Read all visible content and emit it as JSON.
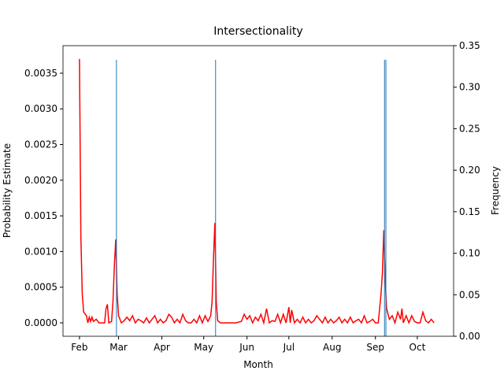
{
  "chart_data": {
    "type": "line",
    "title": "Intersectionality",
    "xlabel": "Month",
    "ylabel": "Probability Estimate",
    "y2label": "Frequency",
    "xlim": [
      20.2,
      300
    ],
    "ylim": [
      -0.000188,
      0.003886
    ],
    "y2lim": [
      0,
      0.35
    ],
    "xticks": [
      {
        "value": 32,
        "label": "Feb"
      },
      {
        "value": 60,
        "label": "Mar"
      },
      {
        "value": 91,
        "label": "Apr"
      },
      {
        "value": 121,
        "label": "May"
      },
      {
        "value": 152,
        "label": "Jun"
      },
      {
        "value": 182,
        "label": "Jul"
      },
      {
        "value": 213,
        "label": "Aug"
      },
      {
        "value": 244,
        "label": "Sep"
      },
      {
        "value": 274,
        "label": "Oct"
      }
    ],
    "yticks": [
      {
        "value": 0,
        "label": "0.0000"
      },
      {
        "value": 0.0005,
        "label": "0.0005"
      },
      {
        "value": 0.001,
        "label": "0.0010"
      },
      {
        "value": 0.0015,
        "label": "0.0015"
      },
      {
        "value": 0.002,
        "label": "0.0020"
      },
      {
        "value": 0.0025,
        "label": "0.0025"
      },
      {
        "value": 0.003,
        "label": "0.0030"
      },
      {
        "value": 0.0035,
        "label": "0.0035"
      }
    ],
    "y2ticks": [
      {
        "value": 0,
        "label": "0.00"
      },
      {
        "value": 0.05,
        "label": "0.05"
      },
      {
        "value": 0.1,
        "label": "0.10"
      },
      {
        "value": 0.15,
        "label": "0.15"
      },
      {
        "value": 0.2,
        "label": "0.20"
      },
      {
        "value": 0.25,
        "label": "0.25"
      },
      {
        "value": 0.3,
        "label": "0.30"
      },
      {
        "value": 0.35,
        "label": "0.35"
      }
    ],
    "series": [
      {
        "type": "line",
        "color": "#ff0000",
        "x": [
          32,
          33,
          34,
          35,
          37,
          38,
          39,
          40,
          41,
          42,
          44,
          46,
          50,
          51,
          52,
          53,
          55,
          56,
          57,
          58,
          59,
          60,
          61,
          62,
          64,
          66,
          68,
          70,
          72,
          74,
          76,
          78,
          80,
          82,
          84,
          86,
          88,
          90,
          92,
          94,
          96,
          98,
          100,
          102,
          104,
          106,
          108,
          110,
          112,
          114,
          116,
          118,
          120,
          122,
          124,
          126,
          127,
          128,
          129,
          130,
          131,
          133,
          136,
          140,
          144,
          148,
          150,
          152,
          154,
          156,
          158,
          160,
          162,
          164,
          166,
          168,
          170,
          172,
          174,
          176,
          178,
          180,
          182,
          183,
          184,
          186,
          188,
          190,
          192,
          194,
          196,
          198,
          200,
          202,
          204,
          206,
          208,
          210,
          212,
          214,
          216,
          218,
          220,
          222,
          224,
          226,
          228,
          230,
          232,
          234,
          236,
          238,
          240,
          242,
          244,
          246,
          248,
          249,
          250,
          251,
          252,
          254,
          256,
          258,
          260,
          262,
          263,
          264,
          266,
          268,
          270,
          272,
          274,
          276,
          278,
          280,
          282,
          284,
          286
        ],
        "values": [
          0.0037,
          0.0012,
          0.0004,
          0.00015,
          0.0001,
          0.0,
          8e-05,
          2e-05,
          8e-05,
          2e-05,
          5e-05,
          0.0,
          0.0,
          0.0002,
          0.00026,
          0.0,
          2e-05,
          0.0003,
          0.0008,
          0.00117,
          0.0004,
          0.0001,
          5e-05,
          0.0,
          3e-05,
          8e-05,
          3e-05,
          0.0001,
          0.0,
          5e-05,
          3e-05,
          0.0,
          7e-05,
          0.0,
          5e-05,
          0.0001,
          0.0,
          5e-05,
          0.0,
          3e-05,
          0.00012,
          8e-05,
          0.0,
          5e-05,
          0.0,
          0.00012,
          3e-05,
          0.0,
          0.0,
          5e-05,
          0.0,
          0.0001,
          0.0,
          0.0001,
          2e-05,
          0.0001,
          0.0003,
          0.0009,
          0.0014,
          0.0003,
          3e-05,
          0.0,
          0.0,
          0.0,
          0.0,
          2e-05,
          0.00012,
          5e-05,
          0.0001,
          0.0,
          8e-05,
          3e-05,
          0.00012,
          0.0,
          0.0002,
          0.0,
          3e-05,
          2e-05,
          0.00012,
          0.0,
          0.00012,
          0.0,
          0.00022,
          0.0,
          0.00018,
          0.0,
          5e-05,
          0.0,
          8e-05,
          0.0,
          5e-05,
          0.0,
          3e-05,
          0.0001,
          5e-05,
          0.0,
          8e-05,
          0.0,
          5e-05,
          0.0,
          3e-05,
          8e-05,
          0.0,
          5e-05,
          0.0,
          8e-05,
          0.0,
          3e-05,
          5e-05,
          0.0,
          0.0001,
          0.0,
          2e-05,
          5e-05,
          0.0,
          0.0,
          0.0004,
          0.0007,
          0.0013,
          0.0006,
          0.0002,
          5e-05,
          0.0001,
          0.0,
          0.00015,
          5e-05,
          0.0002,
          0.0,
          0.0001,
          0.0,
          0.0001,
          2e-05,
          0.0,
          0.0,
          0.00015,
          3e-05,
          0.0,
          5e-05,
          0.0
        ]
      },
      {
        "type": "bar",
        "color": "#1f77b4",
        "axis": "y2",
        "x": [
          58.5,
          129.5,
          250.5,
          251.5
        ],
        "values": [
          0.333,
          0.333,
          0.333,
          0.333
        ]
      }
    ]
  }
}
